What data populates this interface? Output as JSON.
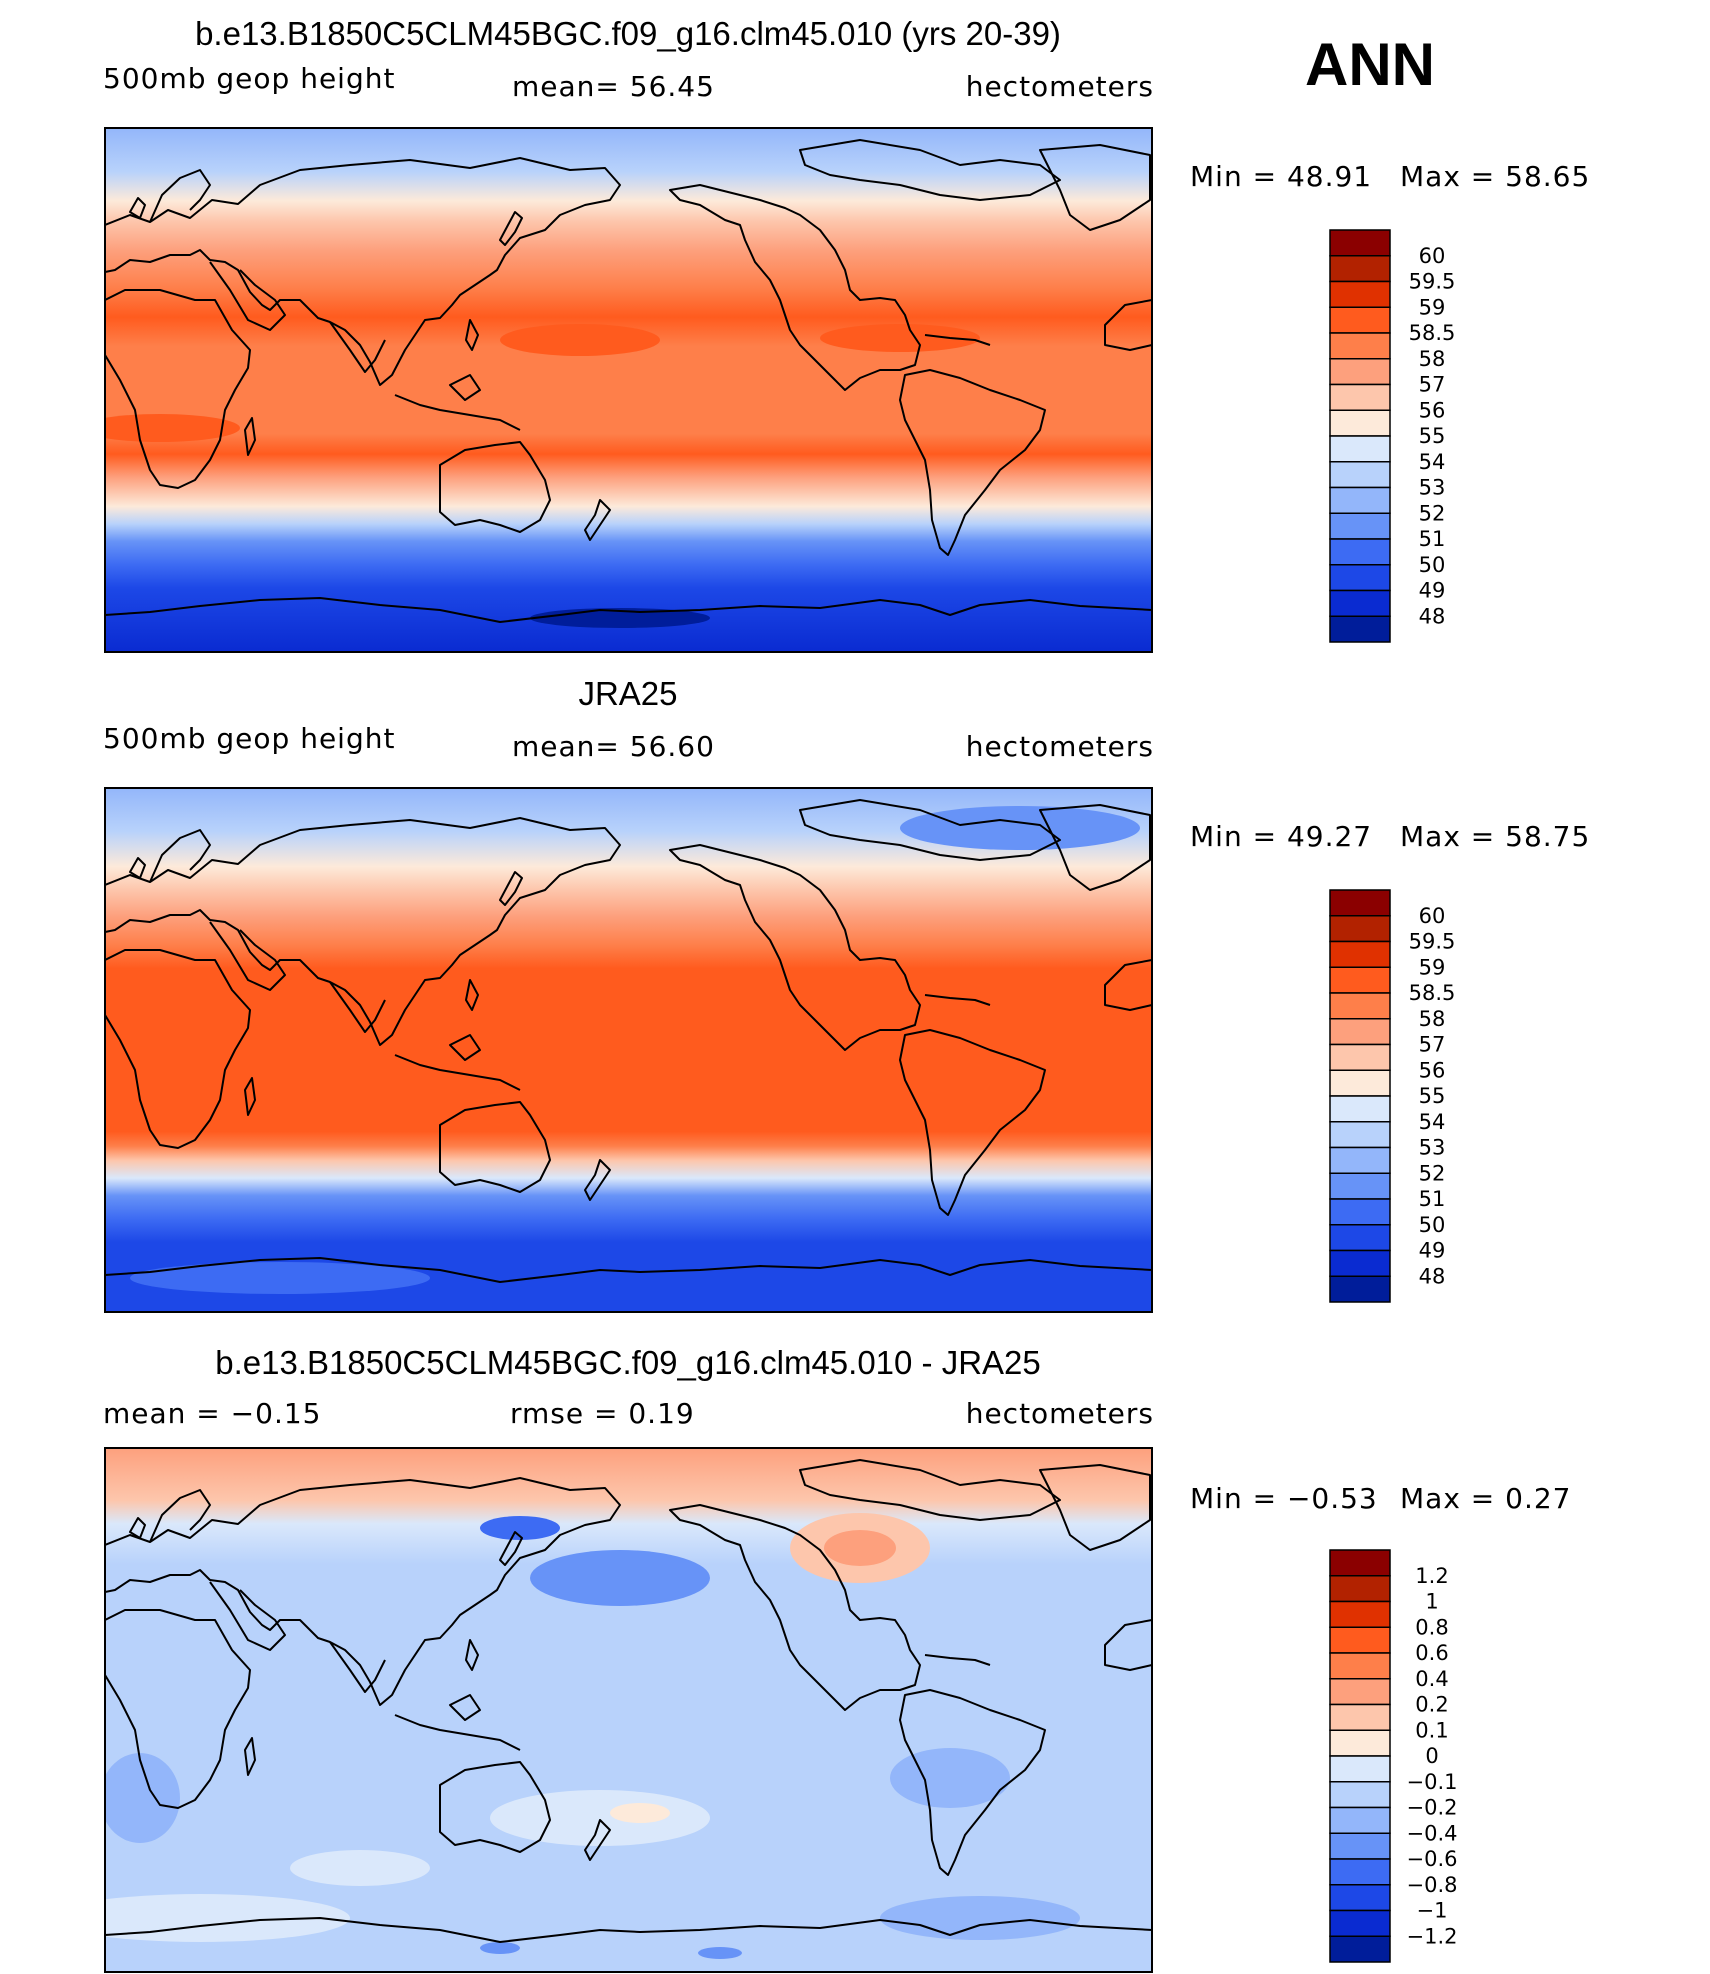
{
  "season": "ANN",
  "chart_data": [
    {
      "type": "heatmap",
      "title": "b.e13.B1850C5CLM45BGC.f09_g16.clm45.010 (yrs 20-39)",
      "variable": "500mb  geop  height",
      "mean_text": "mean=   56.45",
      "units": "hectometers",
      "min_text": "Min  =     48.91",
      "max_text": "Max  =     58.65",
      "min": 48.91,
      "max": 58.65,
      "levels": [
        "60",
        "59.5",
        "59",
        "58.5",
        "58",
        "57",
        "56",
        "55",
        "54",
        "53",
        "52",
        "51",
        "50",
        "49",
        "48"
      ],
      "colors": [
        "#8b0000",
        "#b22200",
        "#e03100",
        "#ff5b1e",
        "#fe7f4a",
        "#fda07d",
        "#fdc6ac",
        "#fdeada",
        "#dae8fb",
        "#b8d2fb",
        "#93b6fa",
        "#6793f7",
        "#3d6bf3",
        "#1d48e7",
        "#0a2bd1",
        "#001d9a"
      ],
      "profile": [
        [
          90,
          "#93b6fa"
        ],
        [
          75,
          "#b8d2fb"
        ],
        [
          65,
          "#fdeada"
        ],
        [
          58,
          "#fdc6ac"
        ],
        [
          48,
          "#fda07d"
        ],
        [
          35,
          "#fe7f4a"
        ],
        [
          25,
          "#ff5b1e"
        ],
        [
          15,
          "#fe7f4a"
        ],
        [
          -15,
          "#fe7f4a"
        ],
        [
          -22,
          "#ff5b1e"
        ],
        [
          -30,
          "#fda07d"
        ],
        [
          -40,
          "#fdeada"
        ],
        [
          -46,
          "#b8d2fb"
        ],
        [
          -52,
          "#6793f7"
        ],
        [
          -60,
          "#3d6bf3"
        ],
        [
          -68,
          "#1d48e7"
        ],
        [
          -90,
          "#0a2bd1"
        ]
      ]
    },
    {
      "type": "heatmap",
      "title": "JRA25",
      "variable": "500mb  geop  height",
      "mean_text": "mean=   56.60",
      "units": "hectometers",
      "min_text": "Min  =     49.27",
      "max_text": "Max  =     58.75",
      "min": 49.27,
      "max": 58.75,
      "levels": [
        "60",
        "59.5",
        "59",
        "58.5",
        "58",
        "57",
        "56",
        "55",
        "54",
        "53",
        "52",
        "51",
        "50",
        "49",
        "48"
      ],
      "colors": [
        "#8b0000",
        "#b22200",
        "#e03100",
        "#ff5b1e",
        "#fe7f4a",
        "#fda07d",
        "#fdc6ac",
        "#fdeada",
        "#dae8fb",
        "#b8d2fb",
        "#93b6fa",
        "#6793f7",
        "#3d6bf3",
        "#1d48e7",
        "#0a2bd1",
        "#001d9a"
      ],
      "profile": [
        [
          90,
          "#93b6fa"
        ],
        [
          75,
          "#b8d2fb"
        ],
        [
          63,
          "#fdeada"
        ],
        [
          55,
          "#fdc6ac"
        ],
        [
          46,
          "#fda07d"
        ],
        [
          36,
          "#fe7f4a"
        ],
        [
          28,
          "#ff5b1e"
        ],
        [
          -28,
          "#ff5b1e"
        ],
        [
          -33,
          "#fe7f4a"
        ],
        [
          -38,
          "#fdc6ac"
        ],
        [
          -44,
          "#dae8fb"
        ],
        [
          -50,
          "#6793f7"
        ],
        [
          -58,
          "#3d6bf3"
        ],
        [
          -66,
          "#1d48e7"
        ],
        [
          -90,
          "#1d48e7"
        ]
      ]
    },
    {
      "type": "heatmap",
      "title": "b.e13.B1850C5CLM45BGC.f09_g16.clm45.010 - JRA25",
      "variable": "",
      "mean_text": "mean  =    −0.15",
      "rmse_text": "rmse  =     0.19",
      "units": "hectometers",
      "min_text": "Min  =    −0.53",
      "max_text": "Max  =      0.27",
      "min": -0.53,
      "max": 0.27,
      "levels": [
        "1.2",
        "1",
        "0.8",
        "0.6",
        "0.4",
        "0.2",
        "0.1",
        "0",
        "−0.1",
        "−0.2",
        "−0.4",
        "−0.6",
        "−0.8",
        "−1",
        "−1.2"
      ],
      "colors": [
        "#8b0000",
        "#b22200",
        "#e03100",
        "#ff5b1e",
        "#fe7f4a",
        "#fda07d",
        "#fdc6ac",
        "#fdeada",
        "#dae8fb",
        "#b8d2fb",
        "#93b6fa",
        "#6793f7",
        "#3d6bf3",
        "#1d48e7",
        "#0a2bd1",
        "#001d9a"
      ],
      "profile": [
        [
          90,
          "#fda07d"
        ],
        [
          72,
          "#fdc6ac"
        ],
        [
          64,
          "#dae8fb"
        ],
        [
          50,
          "#b8d2fb"
        ],
        [
          -90,
          "#b8d2fb"
        ]
      ]
    }
  ]
}
